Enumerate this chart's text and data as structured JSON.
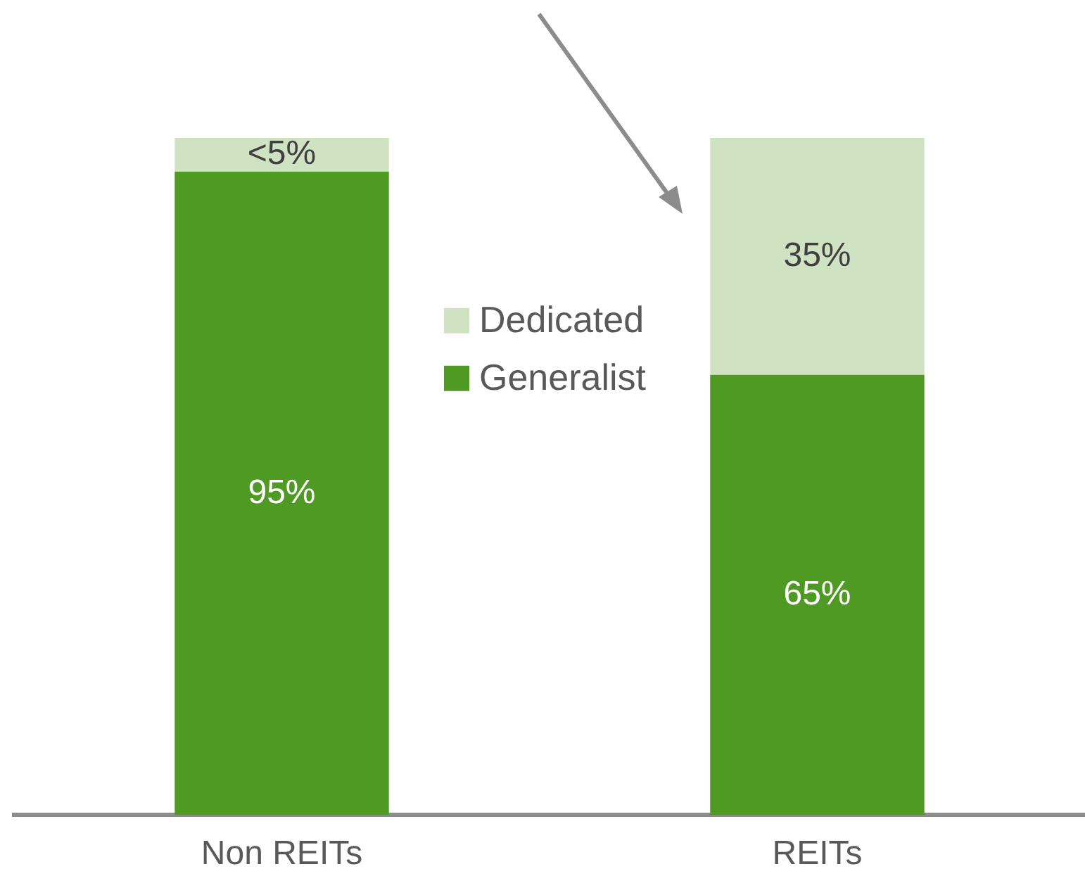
{
  "chart_data": {
    "type": "bar",
    "stacked": true,
    "categories": [
      "Non REITs",
      "REITs"
    ],
    "series": [
      {
        "name": "Generalist",
        "color": "#4f9a22",
        "values": [
          95,
          65
        ],
        "value_labels": [
          "95%",
          "65%"
        ]
      },
      {
        "name": "Dedicated",
        "color": "#cfe3c2",
        "values": [
          5,
          35
        ],
        "value_labels": [
          "<5%",
          "35%"
        ]
      }
    ],
    "ylim": [
      0,
      100
    ],
    "tick_labels": "x",
    "grid": false,
    "legend": "center"
  }
}
